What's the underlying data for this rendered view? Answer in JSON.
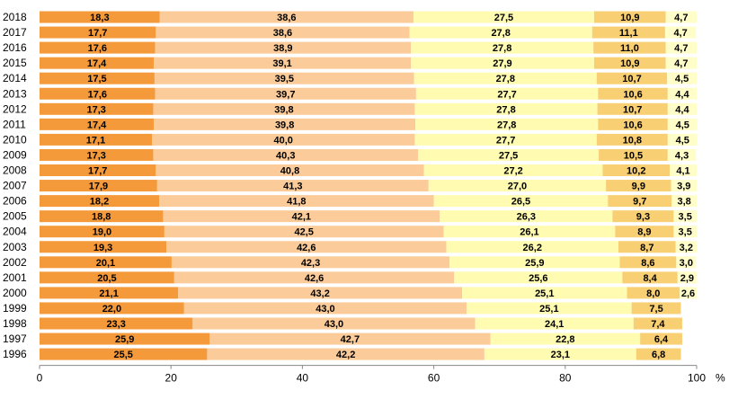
{
  "chart_data": {
    "type": "bar",
    "orientation": "horizontal",
    "stacked": true,
    "categories": [
      "2018",
      "2017",
      "2016",
      "2015",
      "2014",
      "2013",
      "2012",
      "2011",
      "2010",
      "2009",
      "2008",
      "2007",
      "2006",
      "2005",
      "2004",
      "2003",
      "2002",
      "2001",
      "2000",
      "1999",
      "1998",
      "1997",
      "1996"
    ],
    "series": [
      {
        "color": "#F59A3A",
        "values": [
          18.3,
          17.7,
          17.6,
          17.4,
          17.5,
          17.6,
          17.3,
          17.4,
          17.1,
          17.3,
          17.7,
          17.9,
          18.2,
          18.8,
          19.0,
          19.3,
          20.1,
          20.5,
          21.1,
          22.0,
          23.3,
          25.9,
          25.5
        ]
      },
      {
        "color": "#FBCB9A",
        "values": [
          38.6,
          38.6,
          38.9,
          39.1,
          39.5,
          39.7,
          39.8,
          39.8,
          40.0,
          40.3,
          40.8,
          41.3,
          41.8,
          42.1,
          42.5,
          42.6,
          42.3,
          42.6,
          43.2,
          43.0,
          43.0,
          42.7,
          42.2
        ]
      },
      {
        "color": "#FFFBB0",
        "values": [
          27.5,
          27.8,
          27.8,
          27.9,
          27.8,
          27.7,
          27.8,
          27.8,
          27.7,
          27.5,
          27.2,
          27.0,
          26.5,
          26.3,
          26.1,
          26.2,
          25.9,
          25.6,
          25.1,
          25.1,
          24.1,
          22.8,
          23.1
        ]
      },
      {
        "color": "#F8CF72",
        "values": [
          10.9,
          11.1,
          11.0,
          10.9,
          10.7,
          10.6,
          10.7,
          10.6,
          10.8,
          10.5,
          10.2,
          9.9,
          9.7,
          9.3,
          8.9,
          8.7,
          8.6,
          8.4,
          8.0,
          7.5,
          7.4,
          6.4,
          6.8
        ]
      },
      {
        "color": "#FFFDC8",
        "values": [
          4.7,
          4.7,
          4.7,
          4.7,
          4.5,
          4.4,
          4.4,
          4.5,
          4.5,
          4.3,
          4.1,
          3.9,
          3.8,
          3.5,
          3.5,
          3.2,
          3.0,
          2.9,
          2.6,
          null,
          null,
          null,
          null
        ]
      }
    ],
    "data_labels": [
      [
        "18,3",
        "38,6",
        "27,5",
        "10,9",
        "4,7"
      ],
      [
        "17,7",
        "38,6",
        "27,8",
        "11,1",
        "4,7"
      ],
      [
        "17,6",
        "38,9",
        "27,8",
        "11,0",
        "4,7"
      ],
      [
        "17,4",
        "39,1",
        "27,9",
        "10,9",
        "4,7"
      ],
      [
        "17,5",
        "39,5",
        "27,8",
        "10,7",
        "4,5"
      ],
      [
        "17,6",
        "39,7",
        "27,7",
        "10,6",
        "4,4"
      ],
      [
        "17,3",
        "39,8",
        "27,8",
        "10,7",
        "4,4"
      ],
      [
        "17,4",
        "39,8",
        "27,8",
        "10,6",
        "4,5"
      ],
      [
        "17,1",
        "40,0",
        "27,7",
        "10,8",
        "4,5"
      ],
      [
        "17,3",
        "40,3",
        "27,5",
        "10,5",
        "4,3"
      ],
      [
        "17,7",
        "40,8",
        "27,2",
        "10,2",
        "4,1"
      ],
      [
        "17,9",
        "41,3",
        "27,0",
        "9,9",
        "3,9"
      ],
      [
        "18,2",
        "41,8",
        "26,5",
        "9,7",
        "3,8"
      ],
      [
        "18,8",
        "42,1",
        "26,3",
        "9,3",
        "3,5"
      ],
      [
        "19,0",
        "42,5",
        "26,1",
        "8,9",
        "3,5"
      ],
      [
        "19,3",
        "42,6",
        "26,2",
        "8,7",
        "3,2"
      ],
      [
        "20,1",
        "42,3",
        "25,9",
        "8,6",
        "3,0"
      ],
      [
        "20,5",
        "42,6",
        "25,6",
        "8,4",
        "2,9"
      ],
      [
        "21,1",
        "43,2",
        "25,1",
        "8,0",
        "2,6"
      ],
      [
        "22,0",
        "43,0",
        "25,1",
        "7,5",
        ""
      ],
      [
        "23,3",
        "43,0",
        "24,1",
        "7,4",
        ""
      ],
      [
        "25,9",
        "42,7",
        "22,8",
        "6,4",
        ""
      ],
      [
        "25,5",
        "42,2",
        "23,1",
        "6,8",
        ""
      ]
    ],
    "x_ticks": [
      "0",
      "20",
      "40",
      "60",
      "80",
      "100"
    ],
    "x_unit": "%",
    "xlim": [
      0,
      100
    ],
    "grid": false,
    "legend": "none",
    "title": "",
    "xlabel": "",
    "ylabel": ""
  }
}
